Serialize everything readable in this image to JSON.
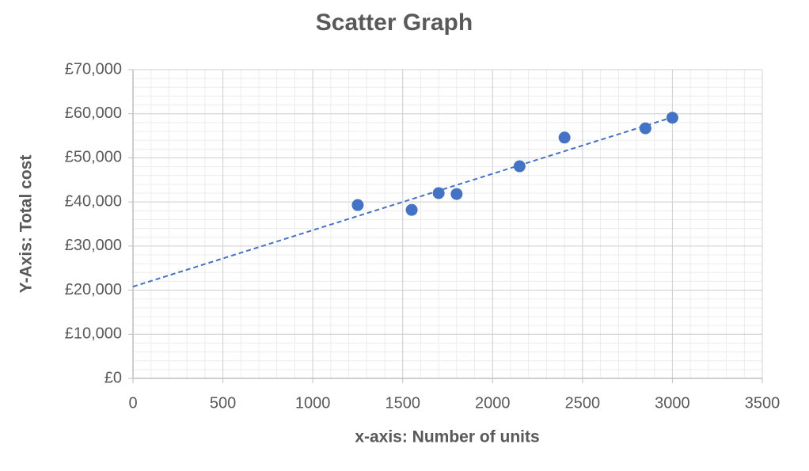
{
  "chart_data": {
    "type": "scatter",
    "title": "Scatter Graph",
    "x_label": "x-axis: Number of units",
    "y_label": "Y-Axis: Total cost",
    "x": [
      1250,
      1550,
      1700,
      1800,
      2150,
      2400,
      2850,
      3000
    ],
    "series": [
      {
        "color": "#4472c4",
        "values": [
          39300,
          38200,
          42000,
          41800,
          48100,
          54600,
          56700,
          59100
        ]
      }
    ],
    "trendline": {
      "x": [
        0,
        3000
      ],
      "y": [
        20800,
        59200
      ],
      "color": "#4472c4",
      "dashed": true
    },
    "xlim": [
      0,
      3500
    ],
    "xticks": [
      0,
      500,
      1000,
      1500,
      2000,
      2500,
      3000,
      3500
    ],
    "ylim": [
      0,
      70000
    ],
    "yticks": [
      {
        "value": 0,
        "label": "£0"
      },
      {
        "value": 10000,
        "label": "£10,000"
      },
      {
        "value": 20000,
        "label": "£20,000"
      },
      {
        "value": 30000,
        "label": "£30,000"
      },
      {
        "value": 40000,
        "label": "£40,000"
      },
      {
        "value": 50000,
        "label": "£50,000"
      },
      {
        "value": 60000,
        "label": "£60,000"
      },
      {
        "value": 70000,
        "label": "£70,000"
      }
    ],
    "grid": true,
    "minor_grid": true,
    "x_minor_step": 100,
    "y_minor_step": 2000
  }
}
